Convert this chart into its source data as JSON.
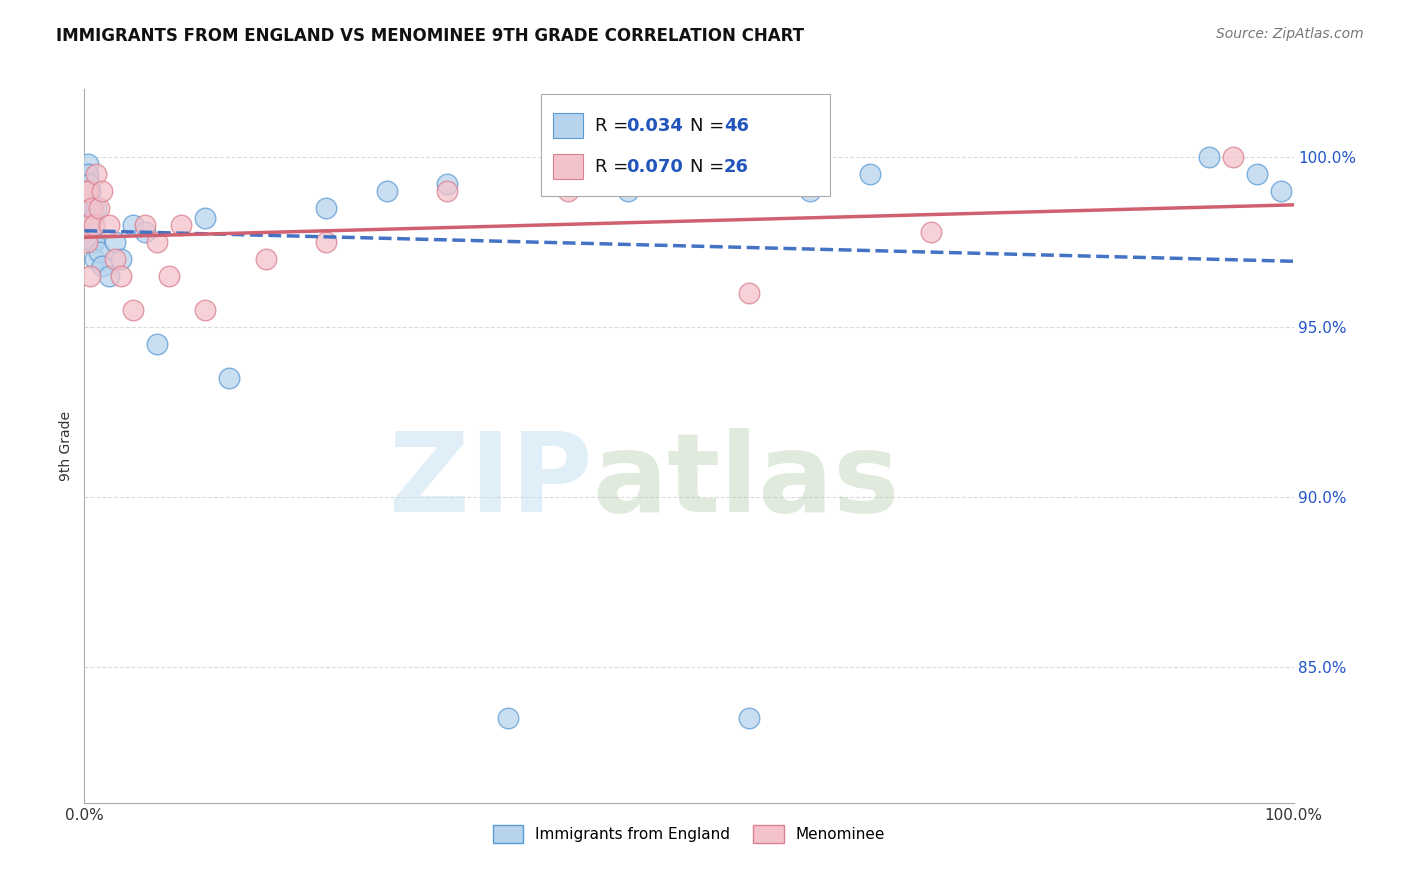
{
  "title": "IMMIGRANTS FROM ENGLAND VS MENOMINEE 9TH GRADE CORRELATION CHART",
  "source_text": "Source: ZipAtlas.com",
  "ylabel": "9th Grade",
  "x_min": 0.0,
  "x_max": 100.0,
  "y_min": 81.0,
  "y_max": 102.0,
  "y_ticks": [
    85.0,
    90.0,
    95.0,
    100.0
  ],
  "england_R": 0.034,
  "england_N": 46,
  "menominee_R": 0.07,
  "menominee_N": 26,
  "england_color": "#b8d4ec",
  "england_edge_color": "#5b9bd5",
  "england_line_color": "#4472c4",
  "menominee_color": "#f4c2cb",
  "menominee_edge_color": "#d98090",
  "menominee_line_color": "#d06070",
  "background_color": "#ffffff",
  "grid_color": "#cccccc",
  "title_fontsize": 12,
  "source_fontsize": 10,
  "legend_r_color": "#2255bb",
  "england_x": [
    0.1,
    0.15,
    0.18,
    0.2,
    0.22,
    0.25,
    0.28,
    0.3,
    0.32,
    0.35,
    0.38,
    0.4,
    0.42,
    0.45,
    0.48,
    0.5,
    0.55,
    0.6,
    0.65,
    0.7,
    0.8,
    0.9,
    1.0,
    1.2,
    1.5,
    2.0,
    2.5,
    3.0,
    4.0,
    5.0,
    6.0,
    10.0,
    12.0,
    20.0,
    25.0,
    30.0,
    35.0,
    40.0,
    45.0,
    50.0,
    55.0,
    60.0,
    65.0,
    93.0,
    97.0,
    99.0
  ],
  "england_y": [
    98.8,
    99.2,
    99.0,
    98.5,
    99.5,
    98.8,
    99.3,
    99.8,
    99.5,
    99.0,
    98.7,
    99.2,
    98.5,
    99.0,
    98.3,
    98.0,
    97.8,
    98.5,
    97.5,
    98.2,
    97.5,
    97.0,
    98.5,
    97.2,
    96.8,
    96.5,
    97.5,
    97.0,
    98.0,
    97.8,
    94.5,
    98.2,
    93.5,
    98.5,
    99.0,
    99.2,
    83.5,
    99.5,
    99.0,
    99.2,
    83.5,
    99.0,
    99.5,
    100.0,
    99.5,
    99.0
  ],
  "menominee_x": [
    0.1,
    0.2,
    0.3,
    0.4,
    0.5,
    0.6,
    0.8,
    1.0,
    1.2,
    1.5,
    2.0,
    2.5,
    3.0,
    4.0,
    5.0,
    6.0,
    7.0,
    8.0,
    10.0,
    15.0,
    20.0,
    30.0,
    40.0,
    55.0,
    70.0,
    95.0
  ],
  "menominee_y": [
    99.0,
    97.5,
    99.0,
    98.0,
    96.5,
    98.5,
    98.0,
    99.5,
    98.5,
    99.0,
    98.0,
    97.0,
    96.5,
    95.5,
    98.0,
    97.5,
    96.5,
    98.0,
    95.5,
    97.0,
    97.5,
    99.0,
    99.0,
    96.0,
    97.8,
    100.0
  ]
}
